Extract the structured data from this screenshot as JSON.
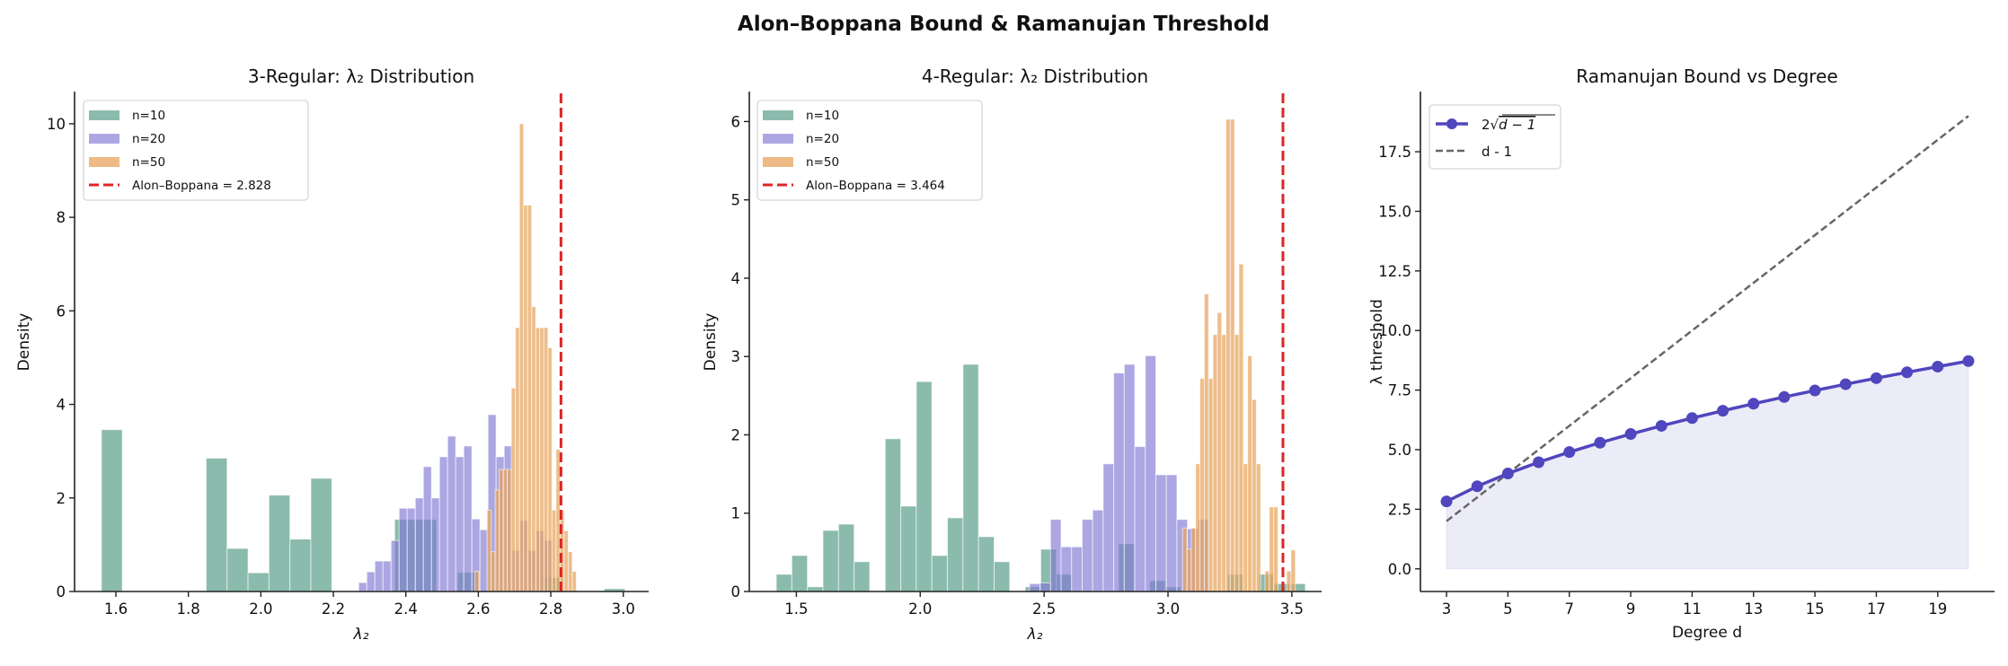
{
  "suptitle": "Alon–Boppana Bound & Ramanujan Threshold",
  "colors": {
    "n10": "#5a9e8a",
    "n20": "#7f78d2",
    "n50": "#e8a35c",
    "alon_boppana": "#e02424",
    "ramanujan": "#5046be",
    "d_minus_1": "#666666"
  },
  "chart_data": [
    {
      "type": "bar",
      "kind": "histogram",
      "title": "3-Regular: λ₂ Distribution",
      "xlabel": "λ₂",
      "ylabel": "Density",
      "xlim": [
        1.486,
        3.07
      ],
      "ylim": [
        0,
        10.65
      ],
      "xticks": [
        "1.6",
        "1.8",
        "2.0",
        "2.2",
        "2.4",
        "2.6",
        "2.8",
        "3.0"
      ],
      "yticks": [
        "0",
        "2",
        "4",
        "6",
        "8",
        "10"
      ],
      "grid": false,
      "legend": "top-left",
      "series": [
        {
          "name": "n=10",
          "color_key": "n10",
          "bin_start": 1.56,
          "bin_width": 0.0578,
          "values": [
            3.46,
            0,
            0,
            0,
            0,
            2.85,
            0.92,
            0.4,
            2.06,
            1.12,
            2.42,
            0,
            0,
            0,
            1.54,
            1.54,
            0,
            0.41,
            0,
            0,
            0,
            0.3,
            0,
            0,
            0.06
          ]
        },
        {
          "name": "n=20",
          "color_key": "n20",
          "bin_start": 2.27,
          "bin_width": 0.0223,
          "values": [
            0.19,
            0.42,
            0.65,
            0.65,
            1.09,
            1.78,
            1.78,
            2.0,
            2.67,
            2.0,
            2.88,
            3.32,
            2.88,
            3.11,
            1.55,
            1.32,
            3.78,
            2.88,
            3.11,
            0.88,
            1.52,
            0.88,
            1.3,
            1.09
          ]
        },
        {
          "name": "n=50",
          "color_key": "n50",
          "bin_start": 2.5904,
          "bin_width": 0.0112,
          "values": [
            0.43,
            0,
            0,
            1.74,
            0.85,
            2.17,
            2.61,
            2.61,
            2.61,
            4.35,
            5.64,
            10.0,
            8.26,
            8.26,
            6.09,
            5.64,
            5.64,
            5.64,
            5.21,
            1.74,
            3.04,
            1.74,
            1.3,
            0.85,
            0.43
          ]
        }
      ],
      "vline": {
        "name": "Alon–Boppana = 2.828",
        "x": 2.828
      }
    },
    {
      "type": "bar",
      "kind": "histogram",
      "title": "4-Regular: λ₂ Distribution",
      "xlabel": "λ₂",
      "ylabel": "Density",
      "xlim": [
        1.31,
        3.62
      ],
      "ylim": [
        0,
        6.36
      ],
      "xticks": [
        "1.5",
        "2.0",
        "2.5",
        "3.0",
        "3.5"
      ],
      "yticks": [
        "0",
        "1",
        "2",
        "3",
        "4",
        "5",
        "6"
      ],
      "grid": false,
      "legend": "top-left",
      "series": [
        {
          "name": "n=10",
          "color_key": "n10",
          "bin_start": 1.419,
          "bin_width": 0.0628,
          "values": [
            0.22,
            0.46,
            0.06,
            0.78,
            0.86,
            0.38,
            0,
            1.95,
            1.09,
            2.68,
            0.46,
            0.94,
            2.9,
            0.7,
            0.38,
            0,
            0.06,
            0.54,
            0.22,
            0,
            0,
            0,
            0.61,
            0,
            0.14,
            0.06,
            0,
            0,
            0,
            0.22,
            0,
            0.22,
            0.1,
            0.1
          ]
        },
        {
          "name": "n=20",
          "color_key": "n20",
          "bin_start": 2.441,
          "bin_width": 0.0425,
          "values": [
            0.1,
            0.11,
            0.92,
            0.57,
            0.57,
            0.92,
            1.04,
            1.63,
            2.79,
            2.9,
            1.85,
            3.01,
            1.49,
            1.49,
            0.92,
            0.8,
            0.92
          ]
        },
        {
          "name": "n=50",
          "color_key": "n50",
          "bin_start": 3.059,
          "bin_width": 0.0175,
          "values": [
            0.81,
            0.54,
            0.81,
            1.63,
            2.72,
            3.8,
            2.72,
            3.28,
            3.56,
            3.28,
            6.03,
            6.03,
            3.28,
            4.18,
            1.63,
            3.01,
            2.45,
            1.63,
            0,
            0.26,
            1.08,
            1.08,
            0,
            0,
            0.26,
            0.53
          ]
        }
      ],
      "vline": {
        "name": "Alon–Boppana = 3.464",
        "x": 3.464
      }
    },
    {
      "type": "line",
      "title": "Ramanujan Bound vs Degree",
      "xlabel": "Degree d",
      "ylabel": "λ threshold",
      "xlim": [
        2.15,
        20.85
      ],
      "ylim": [
        -0.95,
        19.95
      ],
      "xticks": [
        "3",
        "5",
        "7",
        "9",
        "11",
        "13",
        "15",
        "17",
        "19"
      ],
      "yticks": [
        "0.0",
        "2.5",
        "5.0",
        "7.5",
        "10.0",
        "12.5",
        "15.0",
        "17.5"
      ],
      "grid": false,
      "legend": "top-left",
      "x": [
        3,
        4,
        5,
        6,
        7,
        8,
        9,
        10,
        11,
        12,
        13,
        14,
        15,
        16,
        17,
        18,
        19,
        20
      ],
      "series": [
        {
          "name_prefix": "2√",
          "name_radicand": "d − 1",
          "color_key": "ramanujan",
          "style": "solid-marker",
          "fill_to_zero": true,
          "values": [
            2.828,
            3.464,
            4.0,
            4.472,
            4.899,
            5.292,
            5.657,
            6.0,
            6.325,
            6.633,
            6.928,
            7.211,
            7.483,
            7.746,
            8.0,
            8.246,
            8.485,
            8.718
          ]
        },
        {
          "name": "d - 1",
          "color_key": "d_minus_1",
          "style": "dashed",
          "values": [
            2,
            3,
            4,
            5,
            6,
            7,
            8,
            9,
            10,
            11,
            12,
            13,
            14,
            15,
            16,
            17,
            18,
            19
          ]
        }
      ]
    }
  ]
}
